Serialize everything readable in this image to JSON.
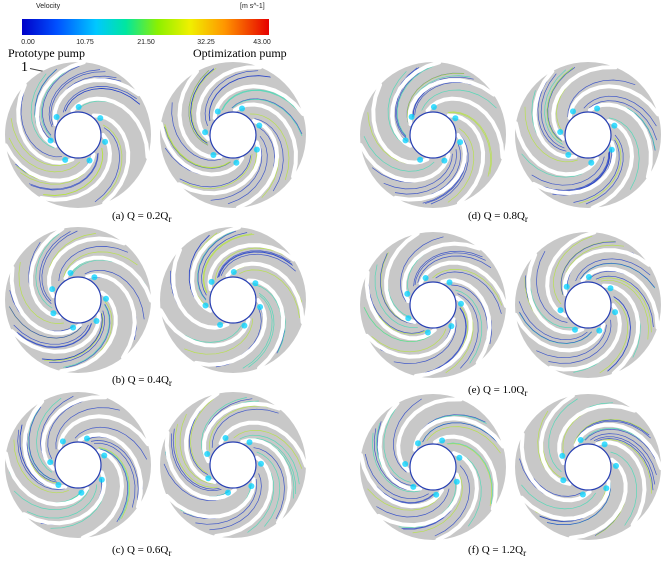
{
  "legend": {
    "title": "Velocity",
    "unit": "[m s^-1]",
    "ticks": [
      "0.00",
      "10.75",
      "21.50",
      "32.25",
      "43.00"
    ],
    "range": [
      0,
      43
    ]
  },
  "column_labels": {
    "prototype": "Prototype pump",
    "optimization": "Optimization pump"
  },
  "marker": "1",
  "panels": [
    {
      "id": "a",
      "caption": "(a)   Q = 0.2Q",
      "subscript": "r"
    },
    {
      "id": "b",
      "caption": "(b)   Q = 0.4Q",
      "subscript": "r"
    },
    {
      "id": "c",
      "caption": "(c)   Q = 0.6Q",
      "subscript": "r"
    },
    {
      "id": "d",
      "caption": "(d)   Q = 0.8Q",
      "subscript": "r"
    },
    {
      "id": "e",
      "caption": "(e)   Q = 1.0Q",
      "subscript": "r"
    },
    {
      "id": "f",
      "caption": "(f)   Q = 1.2Q",
      "subscript": "r"
    }
  ],
  "colors": {
    "background": "#c8c8c8",
    "blade": "#ffffff",
    "streamline_low": "#1e3cc8",
    "streamline_mid": "#3cdcb4",
    "streamline_high": "#b4e632"
  }
}
